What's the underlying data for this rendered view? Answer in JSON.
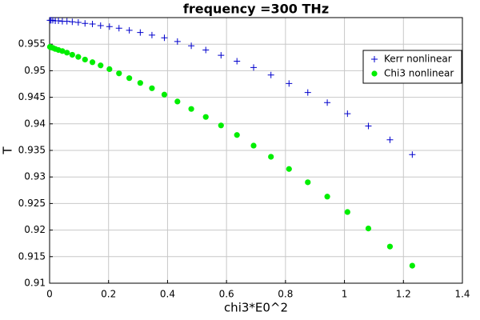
{
  "chart_data": {
    "type": "scatter",
    "title": "frequency =300 THz",
    "xlabel": "chi3*E0^2",
    "ylabel": "T",
    "x": [
      0.0012,
      0.0048,
      0.0108,
      0.0192,
      0.03,
      0.0432,
      0.0589,
      0.0769,
      0.0973,
      0.1201,
      0.1453,
      0.173,
      0.203,
      0.2354,
      0.2703,
      0.3075,
      0.3471,
      0.3892,
      0.4336,
      0.4805,
      0.5297,
      0.5814,
      0.6354,
      0.6919,
      0.7507,
      0.812,
      0.8757,
      0.9417,
      1.0102,
      1.0811,
      1.1543,
      1.23
    ],
    "series": [
      {
        "name": "Kerr nonlinear",
        "color": "#0000cc",
        "marker": "plus",
        "values": [
          0.9595,
          0.9595,
          0.9595,
          0.9594,
          0.9594,
          0.9593,
          0.9593,
          0.9592,
          0.9591,
          0.9589,
          0.9588,
          0.9585,
          0.9583,
          0.958,
          0.9576,
          0.9572,
          0.9567,
          0.9562,
          0.9555,
          0.9547,
          0.9539,
          0.9529,
          0.9518,
          0.9506,
          0.9492,
          0.9476,
          0.9459,
          0.944,
          0.9419,
          0.9396,
          0.937,
          0.9342
        ]
      },
      {
        "name": "Chi3 nonlinear",
        "color": "#00ee00",
        "marker": "circle",
        "values": [
          0.9545,
          0.9544,
          0.9543,
          0.9541,
          0.9539,
          0.9537,
          0.9534,
          0.953,
          0.9526,
          0.9521,
          0.9516,
          0.951,
          0.9503,
          0.9495,
          0.9486,
          0.9477,
          0.9467,
          0.9455,
          0.9442,
          0.9428,
          0.9413,
          0.9397,
          0.9379,
          0.9359,
          0.9338,
          0.9315,
          0.929,
          0.9263,
          0.9234,
          0.9203,
          0.9169,
          0.9133
        ]
      }
    ],
    "xlim": [
      0,
      1.4
    ],
    "xticks": [
      0,
      0.2,
      0.4,
      0.6,
      0.8,
      1,
      1.2,
      1.4
    ],
    "ylim": [
      0.91,
      0.96
    ],
    "yticks": [
      0.91,
      0.915,
      0.92,
      0.925,
      0.93,
      0.935,
      0.94,
      0.945,
      0.95,
      0.955
    ],
    "grid": true,
    "legend": "upper right"
  }
}
